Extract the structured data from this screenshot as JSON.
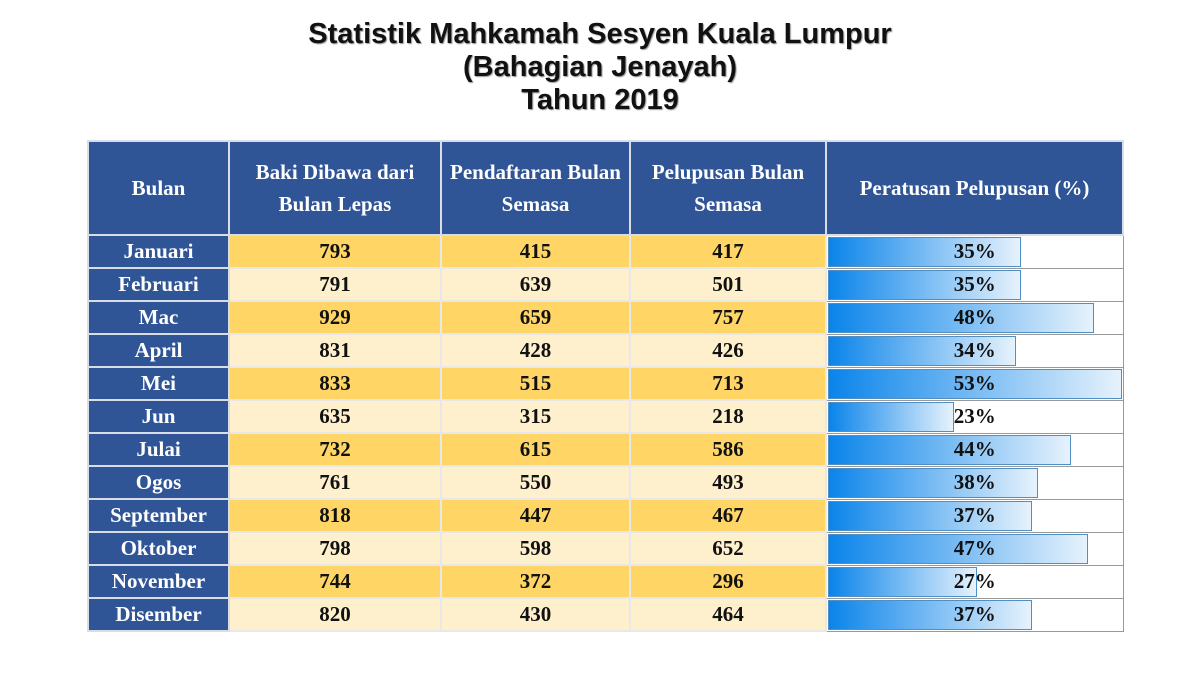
{
  "title_lines": [
    "Statistik Mahkamah Sesyen Kuala Lumpur",
    "(Bahagian Jenayah)",
    "Tahun 2019"
  ],
  "colors": {
    "header": "#2f5597",
    "row_dark": "#ffd666",
    "row_light": "#fff0cd",
    "bar": "#0a84ea"
  },
  "chart_data": {
    "type": "table",
    "columns": [
      "Bulan",
      "Baki Dibawa dari Bulan Lepas",
      "Pendaftaran Bulan Semasa",
      "Pelupusan Bulan Semasa",
      "Peratusan Pelupusan (%)"
    ],
    "rows": [
      {
        "bulan": "Januari",
        "baki": "793",
        "pendaftaran": "415",
        "pelupusan": "417",
        "peratusan": "35%",
        "pct": 35
      },
      {
        "bulan": "Februari",
        "baki": "791",
        "pendaftaran": "639",
        "pelupusan": "501",
        "peratusan": "35%",
        "pct": 35
      },
      {
        "bulan": "Mac",
        "baki": "929",
        "pendaftaran": "659",
        "pelupusan": "757",
        "peratusan": "48%",
        "pct": 48
      },
      {
        "bulan": "April",
        "baki": "831",
        "pendaftaran": "428",
        "pelupusan": "426",
        "peratusan": "34%",
        "pct": 34
      },
      {
        "bulan": "Mei",
        "baki": "833",
        "pendaftaran": "515",
        "pelupusan": "713",
        "peratusan": "53%",
        "pct": 53
      },
      {
        "bulan": "Jun",
        "baki": "635",
        "pendaftaran": "315",
        "pelupusan": "218",
        "peratusan": "23%",
        "pct": 23
      },
      {
        "bulan": "Julai",
        "baki": "732",
        "pendaftaran": "615",
        "pelupusan": "586",
        "peratusan": "44%",
        "pct": 44
      },
      {
        "bulan": "Ogos",
        "baki": "761",
        "pendaftaran": "550",
        "pelupusan": "493",
        "peratusan": "38%",
        "pct": 38
      },
      {
        "bulan": "September",
        "baki": "818",
        "pendaftaran": "447",
        "pelupusan": "467",
        "peratusan": "37%",
        "pct": 37
      },
      {
        "bulan": "Oktober",
        "baki": "798",
        "pendaftaran": "598",
        "pelupusan": "652",
        "peratusan": "47%",
        "pct": 47
      },
      {
        "bulan": "November",
        "baki": "744",
        "pendaftaran": "372",
        "pelupusan": "296",
        "peratusan": "27%",
        "pct": 27
      },
      {
        "bulan": "Disember",
        "baki": "820",
        "pendaftaran": "430",
        "pelupusan": "464",
        "peratusan": "37%",
        "pct": 37
      }
    ]
  }
}
